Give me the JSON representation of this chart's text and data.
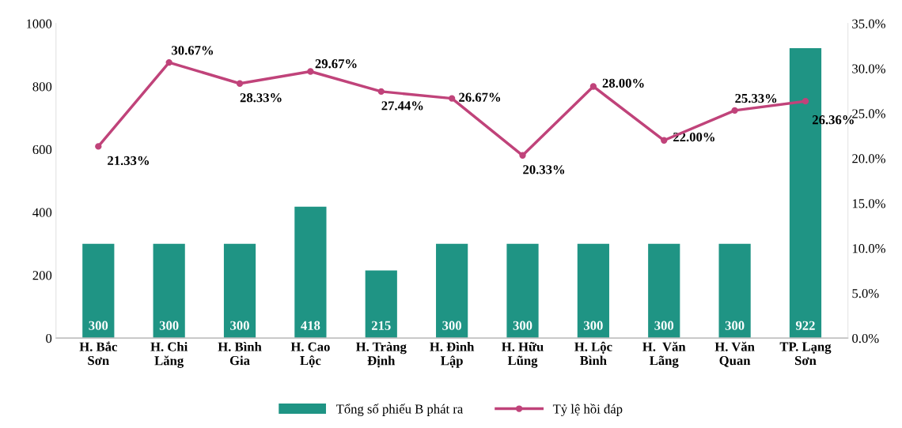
{
  "chart_data": {
    "type": "bar",
    "categories": [
      "H. Bắc\nSơn",
      "H. Chi\nLăng",
      "H. Bình\nGia",
      "H. Cao\nLộc",
      "H. Tràng\nĐịnh",
      "H. Đình\nLập",
      "H. Hữu\nLũng",
      "H. Lộc\nBình",
      "H.  Văn\nLãng",
      "H. Văn\nQuan",
      "TP. Lạng\nSơn"
    ],
    "series": [
      {
        "name": "Tổng số phiếu B phát ra",
        "color": "#1f9484",
        "values": [
          300,
          300,
          300,
          418,
          215,
          300,
          300,
          300,
          300,
          300,
          922
        ],
        "value_labels": [
          "300",
          "300",
          "300",
          "418",
          "215",
          "300",
          "300",
          "300",
          "300",
          "300",
          "922"
        ]
      },
      {
        "name": "Tỷ lệ hồi đáp",
        "type": "line",
        "axis": "y2",
        "color": "#c0437a",
        "marker": "circle",
        "values": [
          21.33,
          30.67,
          28.33,
          29.67,
          27.44,
          26.67,
          20.33,
          28.0,
          22.0,
          25.33,
          26.36
        ],
        "value_labels": [
          "21.33%",
          "30.67%",
          "28.33%",
          "29.67%",
          "27.44%",
          "26.67%",
          "20.33%",
          "28.00%",
          "22.00%",
          "25.33%",
          "26.36%"
        ]
      }
    ],
    "ylim": [
      0,
      1000
    ],
    "yticks": [
      0,
      200,
      400,
      600,
      800,
      1000
    ],
    "y2lim": [
      0,
      35
    ],
    "y2ticks": [
      {
        "value": 0,
        "label": "0.0%"
      },
      {
        "value": 5,
        "label": "5.0%"
      },
      {
        "value": 10,
        "label": "10.0%"
      },
      {
        "value": 15,
        "label": "15.0%"
      },
      {
        "value": 20,
        "label": "20.0%"
      },
      {
        "value": 25,
        "label": "25.0%"
      },
      {
        "value": 30,
        "label": "30.0%"
      },
      {
        "value": 35,
        "label": "35.0%"
      }
    ],
    "grid": false,
    "legend": "bottom"
  }
}
